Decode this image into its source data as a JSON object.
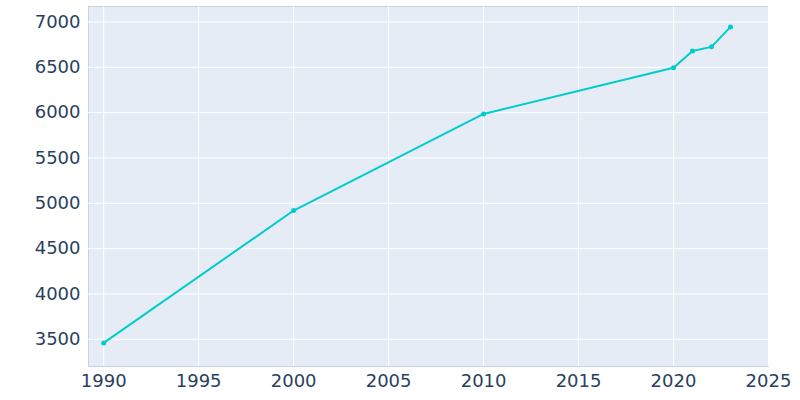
{
  "chart_data": {
    "type": "line",
    "x": [
      1990,
      2000,
      2010,
      2020,
      2021,
      2022,
      2023
    ],
    "values": [
      3460,
      4920,
      5985,
      6495,
      6680,
      6725,
      6945
    ],
    "color": "#00cccc",
    "marker": "circle",
    "xlim": [
      1989.2,
      2025
    ],
    "ylim": [
      3200,
      7170
    ],
    "xticks": [
      1990,
      1995,
      2000,
      2005,
      2010,
      2015,
      2020,
      2025
    ],
    "yticks": [
      3500,
      4000,
      4500,
      5000,
      5500,
      6000,
      6500,
      7000
    ],
    "grid": true
  }
}
